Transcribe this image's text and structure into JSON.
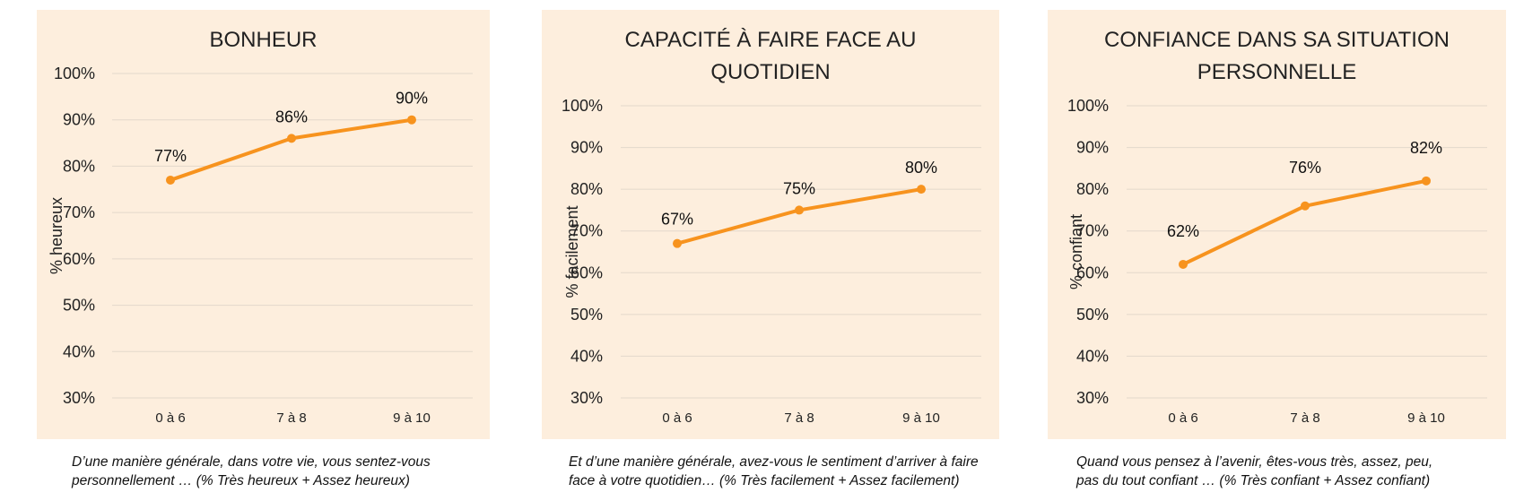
{
  "colors": {
    "panel_background": "#fdeedd",
    "line": "#f7931e",
    "grid": "#e3d8cb"
  },
  "chart_data": [
    {
      "type": "line",
      "title": [
        "BONHEUR"
      ],
      "ylabel": "% heureux",
      "categories": [
        "0 à 6",
        "7 à 8",
        "9 à 10"
      ],
      "values": [
        77,
        86,
        90
      ],
      "data_labels": [
        "77%",
        "86%",
        "90%"
      ],
      "ylim": [
        30,
        100
      ],
      "yticks": [
        "30%",
        "40%",
        "50%",
        "60%",
        "70%",
        "80%",
        "90%",
        "100%"
      ],
      "grid": true,
      "caption": [
        "D’une manière générale, dans votre vie, vous sentez-vous",
        "personnellement … (% Très heureux + Assez heureux)"
      ]
    },
    {
      "type": "line",
      "title": [
        "CAPACITÉ À FAIRE FACE AU",
        "QUOTIDIEN"
      ],
      "ylabel": "% facilement",
      "categories": [
        "0 à 6",
        "7 à 8",
        "9 à 10"
      ],
      "values": [
        67,
        75,
        80
      ],
      "data_labels": [
        "67%",
        "75%",
        "80%"
      ],
      "ylim": [
        30,
        100
      ],
      "yticks": [
        "30%",
        "40%",
        "50%",
        "60%",
        "70%",
        "80%",
        "90%",
        "100%"
      ],
      "grid": true,
      "caption": [
        "Et d’une manière générale, avez-vous le sentiment d’arriver à faire",
        "face à votre quotidien… (% Très facilement + Assez facilement)"
      ]
    },
    {
      "type": "line",
      "title": [
        "CONFIANCE DANS SA SITUATION",
        "PERSONNELLE"
      ],
      "ylabel": "% confiant",
      "categories": [
        "0 à 6",
        "7 à 8",
        "9 à 10"
      ],
      "values": [
        62,
        76,
        82
      ],
      "data_labels": [
        "62%",
        "76%",
        "82%"
      ],
      "ylim": [
        30,
        100
      ],
      "yticks": [
        "30%",
        "40%",
        "50%",
        "60%",
        "70%",
        "80%",
        "90%",
        "100%"
      ],
      "grid": true,
      "caption": [
        "Quand vous pensez à l’avenir, êtes-vous très, assez, peu,",
        "pas du tout confiant … (% Très confiant + Assez confiant)"
      ]
    }
  ]
}
